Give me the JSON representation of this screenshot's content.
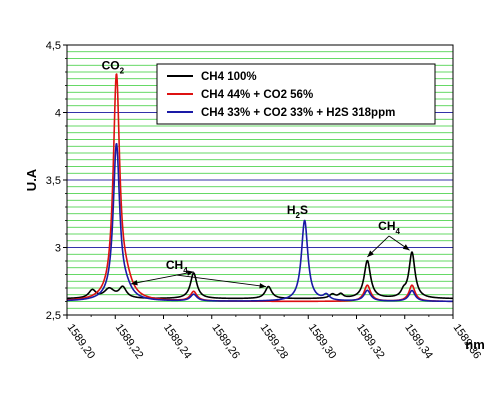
{
  "chart_data": {
    "type": "line",
    "xlabel": "nm",
    "ylabel": "U.A",
    "xlim": [
      1589.2,
      1589.36
    ],
    "ylim": [
      2.5,
      4.5
    ],
    "x_ticks": [
      "1589,20",
      "1589,22",
      "1589,24",
      "1589,26",
      "1589,28",
      "1589,30",
      "1589,32",
      "1589,34",
      "1589,36"
    ],
    "y_ticks": [
      {
        "value": 2.5,
        "label": "2,5"
      },
      {
        "value": 3.0,
        "label": "3"
      },
      {
        "value": 3.5,
        "label": "3,5"
      },
      {
        "value": 4.0,
        "label": "4"
      },
      {
        "value": 4.5,
        "label": "4,5"
      }
    ],
    "grid": true,
    "legend_position": "top-right",
    "colors": {
      "grid_minor": "#33cc33",
      "grid_major": "#3333aa"
    },
    "series": [
      {
        "name": "CH4 100%",
        "color": "#000000",
        "baseline": 2.62,
        "peaks": [
          {
            "x": 1589.2105,
            "height": 0.06,
            "width": 0.0018
          },
          {
            "x": 1589.2175,
            "height": 0.07,
            "width": 0.0025
          },
          {
            "x": 1589.2231,
            "height": 0.08,
            "width": 0.0018
          },
          {
            "x": 1589.2525,
            "height": 0.19,
            "width": 0.0016
          },
          {
            "x": 1589.2835,
            "height": 0.09,
            "width": 0.0016
          },
          {
            "x": 1589.31,
            "height": 0.03,
            "width": 0.0015
          },
          {
            "x": 1589.3135,
            "height": 0.03,
            "width": 0.0012
          },
          {
            "x": 1589.3245,
            "height": 0.28,
            "width": 0.0016
          },
          {
            "x": 1589.343,
            "height": 0.34,
            "width": 0.0015
          },
          {
            "x": 1589.3395,
            "height": 0.04,
            "width": 0.0012
          }
        ]
      },
      {
        "name": "CH4 44% + CO2 56%",
        "color": "#dd1111",
        "baseline": 2.6,
        "peaks": [
          {
            "x": 1589.2205,
            "height": 1.65,
            "width": 0.0016
          },
          {
            "x": 1589.2245,
            "height": 0.11,
            "width": 0.003
          },
          {
            "x": 1589.2525,
            "height": 0.07,
            "width": 0.0016
          },
          {
            "x": 1589.3245,
            "height": 0.12,
            "width": 0.0016
          },
          {
            "x": 1589.343,
            "height": 0.12,
            "width": 0.0015
          }
        ]
      },
      {
        "name": "CH4 33% + CO2 33% + H2S 318ppm",
        "color": "#1a1aa6",
        "baseline": 2.6,
        "peaks": [
          {
            "x": 1589.2205,
            "height": 1.15,
            "width": 0.0016
          },
          {
            "x": 1589.2245,
            "height": 0.06,
            "width": 0.003
          },
          {
            "x": 1589.2525,
            "height": 0.05,
            "width": 0.0016
          },
          {
            "x": 1589.2985,
            "height": 0.6,
            "width": 0.0016
          },
          {
            "x": 1589.3075,
            "height": 0.04,
            "width": 0.0015
          },
          {
            "x": 1589.3245,
            "height": 0.08,
            "width": 0.0016
          },
          {
            "x": 1589.343,
            "height": 0.08,
            "width": 0.0015
          }
        ]
      }
    ],
    "annotations": [
      {
        "id": "co2",
        "main": "CO",
        "sub": "2",
        "x": 1589.219,
        "y": 4.32,
        "arrows": []
      },
      {
        "id": "ch4-left",
        "main": "CH",
        "sub": "4",
        "x": 1589.2455,
        "y": 2.84,
        "arrows": [
          [
            1589.2265,
            2.73
          ],
          [
            1589.2525,
            2.82
          ],
          [
            1589.2825,
            2.71
          ]
        ]
      },
      {
        "id": "h2s",
        "main": "H",
        "sub": "2",
        "suffix": "S",
        "x": 1589.2955,
        "y": 3.25,
        "arrows": []
      },
      {
        "id": "ch4-right",
        "main": "CH",
        "sub": "4",
        "x": 1589.3335,
        "y": 3.13,
        "arrows": [
          [
            1589.3245,
            2.93
          ],
          [
            1589.342,
            2.98
          ]
        ]
      }
    ]
  }
}
